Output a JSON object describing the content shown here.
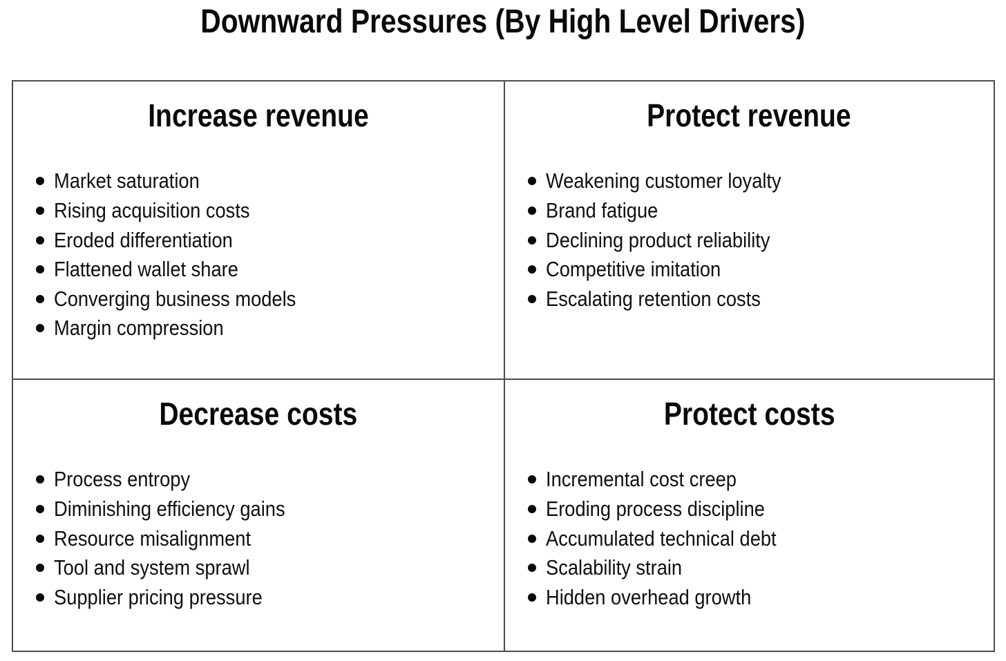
{
  "title": "Downward Pressures (By High Level Drivers)",
  "colors": {
    "background": "#ffffff",
    "text": "#111111",
    "border": "#4d4d4d"
  },
  "quadrants": [
    {
      "id": "increase-revenue",
      "heading": "Increase revenue",
      "items": [
        "Market saturation",
        "Rising acquisition costs",
        "Eroded differentiation",
        "Flattened wallet share",
        "Converging business models",
        "Margin compression"
      ]
    },
    {
      "id": "protect-revenue",
      "heading": "Protect revenue",
      "items": [
        "Weakening customer loyalty",
        "Brand fatigue",
        "Declining product reliability",
        "Competitive imitation",
        "Escalating retention costs"
      ]
    },
    {
      "id": "decrease-costs",
      "heading": "Decrease costs",
      "items": [
        "Process entropy",
        "Diminishing efficiency gains",
        "Resource misalignment",
        "Tool and system sprawl",
        "Supplier pricing pressure"
      ]
    },
    {
      "id": "protect-costs",
      "heading": "Protect costs",
      "items": [
        "Incremental cost creep",
        "Eroding process discipline",
        "Accumulated technical debt",
        "Scalability strain",
        "Hidden overhead growth"
      ]
    }
  ]
}
